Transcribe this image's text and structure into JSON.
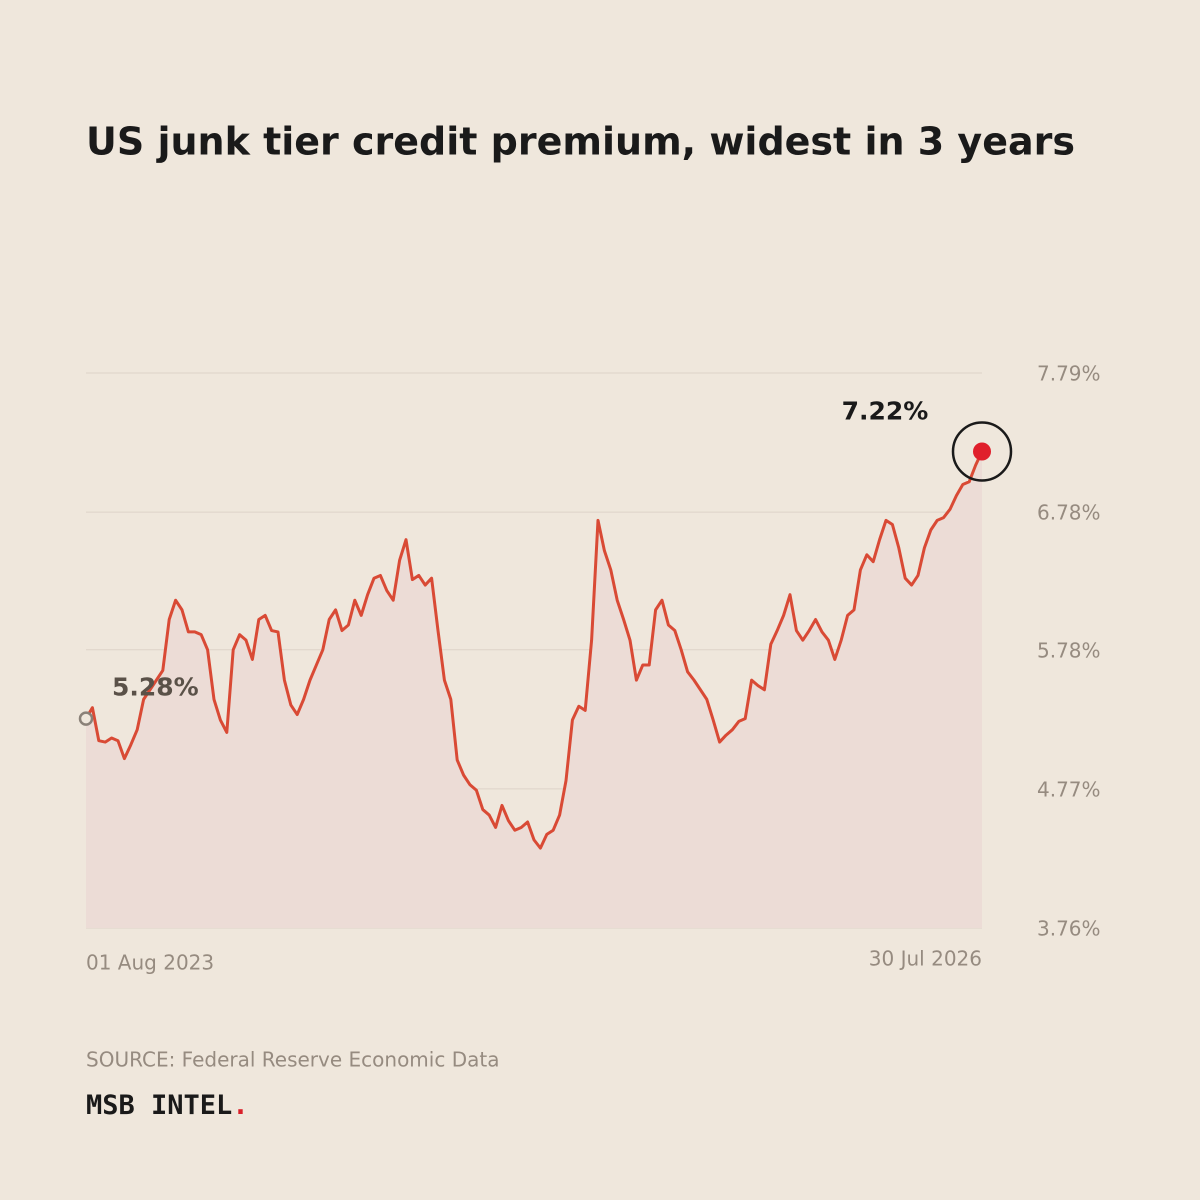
{
  "chart_data": {
    "type": "line",
    "title": "US junk tier credit premium, widest in 3 years",
    "source": "SOURCE: Federal Reserve Economic Data",
    "brand": "MSB INTEL",
    "brand_mark": ".",
    "categories": [
      "01 Aug 2023",
      null,
      null,
      null,
      null,
      null,
      null,
      null,
      null,
      null,
      null,
      null,
      null,
      null,
      null,
      null,
      null,
      null,
      null,
      null,
      null,
      null,
      null,
      null,
      null,
      null,
      null,
      null,
      null,
      null,
      null,
      null,
      null,
      null,
      null,
      null,
      null,
      null,
      null,
      null,
      null,
      null,
      null,
      null,
      null,
      null,
      null,
      null,
      null,
      null,
      null,
      null,
      null,
      null,
      null,
      null,
      null,
      null,
      null,
      null,
      null,
      null,
      null,
      null,
      null,
      null,
      null,
      null,
      null,
      null,
      null,
      null,
      null,
      null,
      null,
      null,
      null,
      null,
      null,
      null,
      null,
      null,
      null,
      null,
      null,
      null,
      null,
      null,
      null,
      null,
      null,
      null,
      null,
      null,
      null,
      null,
      null,
      null,
      null,
      null,
      null,
      null,
      null,
      null,
      null,
      null,
      null,
      null,
      null,
      null,
      null,
      null,
      null,
      null,
      null,
      null,
      null,
      null,
      null,
      null,
      null,
      null,
      null,
      null,
      null,
      null,
      null,
      null,
      null,
      null,
      null,
      null,
      null,
      null,
      null,
      null,
      null,
      null,
      null,
      null,
      "30 Jul 2026"
    ],
    "values": [
      5.28,
      5.36,
      5.12,
      5.11,
      5.14,
      5.12,
      4.99,
      5.09,
      5.2,
      5.42,
      5.49,
      5.56,
      5.63,
      6.0,
      6.14,
      6.07,
      5.91,
      5.91,
      5.89,
      5.78,
      5.42,
      5.27,
      5.18,
      5.78,
      5.89,
      5.85,
      5.71,
      6.0,
      6.03,
      5.92,
      5.91,
      5.56,
      5.38,
      5.31,
      5.42,
      5.56,
      5.67,
      5.78,
      6.0,
      6.07,
      5.92,
      5.96,
      6.14,
      6.03,
      6.18,
      6.3,
      6.32,
      6.21,
      6.14,
      6.43,
      6.58,
      6.29,
      6.32,
      6.25,
      6.3,
      5.92,
      5.56,
      5.42,
      4.98,
      4.87,
      4.8,
      4.76,
      4.62,
      4.58,
      4.49,
      4.65,
      4.54,
      4.47,
      4.49,
      4.53,
      4.4,
      4.34,
      4.44,
      4.47,
      4.58,
      4.83,
      5.27,
      5.37,
      5.34,
      5.85,
      6.72,
      6.5,
      6.36,
      6.14,
      6.0,
      5.85,
      5.56,
      5.67,
      5.67,
      6.07,
      6.14,
      5.96,
      5.92,
      5.78,
      5.62,
      5.56,
      5.49,
      5.42,
      5.27,
      5.11,
      5.16,
      5.2,
      5.26,
      5.28,
      5.56,
      5.52,
      5.49,
      5.82,
      5.92,
      6.03,
      6.18,
      5.92,
      5.85,
      5.92,
      6.0,
      5.91,
      5.85,
      5.71,
      5.85,
      6.03,
      6.07,
      6.36,
      6.47,
      6.42,
      6.58,
      6.72,
      6.69,
      6.52,
      6.3,
      6.25,
      6.32,
      6.52,
      6.65,
      6.72,
      6.74,
      6.8,
      6.9,
      6.98,
      7.0,
      7.12,
      7.22
    ],
    "value_labels": [
      "5.28%",
      null,
      null,
      null,
      null,
      null,
      null,
      null,
      null,
      null,
      null,
      null,
      null,
      null,
      null,
      null,
      null,
      null,
      null,
      null,
      null,
      null,
      null,
      null,
      null,
      null,
      null,
      null,
      null,
      null,
      null,
      null,
      null,
      null,
      null,
      null,
      null,
      null,
      null,
      null,
      null,
      null,
      null,
      null,
      null,
      null,
      null,
      null,
      null,
      null,
      null,
      null,
      null,
      null,
      null,
      null,
      null,
      null,
      null,
      null,
      null,
      null,
      null,
      null,
      null,
      null,
      null,
      null,
      null,
      null,
      null,
      null,
      null,
      null,
      null,
      null,
      null,
      null,
      null,
      null,
      null,
      null,
      null,
      null,
      null,
      null,
      null,
      null,
      null,
      null,
      null,
      null,
      null,
      null,
      null,
      null,
      null,
      null,
      null,
      null,
      null,
      null,
      null,
      null,
      null,
      null,
      null,
      null,
      null,
      null,
      null,
      null,
      null,
      null,
      null,
      null,
      null,
      null,
      null,
      null,
      null,
      null,
      null,
      null,
      null,
      null,
      null,
      null,
      null,
      null,
      null,
      null,
      null,
      null,
      null,
      null,
      null,
      null,
      null,
      null,
      "7.22%"
    ],
    "color": "#d94a35",
    "fill_color": "#ecdcd6",
    "ylim": [
      3.76,
      7.79
    ],
    "yticks": [
      {
        "value": 3.76,
        "label": "3.76%"
      },
      {
        "value": 4.77,
        "label": "4.77%"
      },
      {
        "value": 5.78,
        "label": "5.78%"
      },
      {
        "value": 6.78,
        "label": "6.78%"
      },
      {
        "value": 7.79,
        "label": "7.79%"
      }
    ],
    "grid": true
  }
}
